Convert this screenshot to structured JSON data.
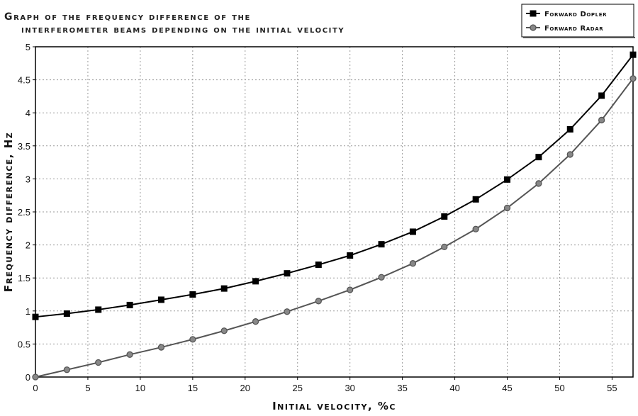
{
  "chart_data": {
    "type": "line",
    "title_lines": [
      "Graph of the frequency difference of the",
      "interferometer beams depending on the initial velocity"
    ],
    "xlabel": "Initial velocity, %c",
    "ylabel": "Frequency difference, Hz",
    "xlim": [
      0,
      57
    ],
    "ylim": [
      0,
      5
    ],
    "xticks": [
      0,
      5,
      10,
      15,
      20,
      25,
      30,
      35,
      40,
      45,
      50,
      55
    ],
    "yticks": [
      0,
      0.5,
      1,
      1.5,
      2,
      2.5,
      3,
      3.5,
      4,
      4.5,
      5
    ],
    "grid": true,
    "legend_position": "top-right",
    "series": [
      {
        "name": "Forward Dopler",
        "color": "#000000",
        "marker": "square",
        "x": [
          0,
          3,
          6,
          9,
          12,
          15,
          18,
          21,
          24,
          27,
          30,
          33,
          36,
          39,
          42,
          45,
          48,
          51,
          54,
          57
        ],
        "y": [
          0.91,
          0.96,
          1.02,
          1.09,
          1.17,
          1.25,
          1.34,
          1.45,
          1.57,
          1.7,
          1.84,
          2.01,
          2.2,
          2.43,
          2.69,
          2.99,
          3.33,
          3.75,
          4.26,
          4.88
        ]
      },
      {
        "name": "Forward Radar",
        "color": "#555555",
        "marker": "circle",
        "x": [
          0,
          3,
          6,
          9,
          12,
          15,
          18,
          21,
          24,
          27,
          30,
          33,
          36,
          39,
          42,
          45,
          48,
          51,
          54,
          57
        ],
        "y": [
          0.0,
          0.11,
          0.22,
          0.34,
          0.45,
          0.57,
          0.7,
          0.84,
          0.99,
          1.15,
          1.32,
          1.51,
          1.72,
          1.97,
          2.24,
          2.56,
          2.93,
          3.37,
          3.89,
          4.52
        ]
      }
    ]
  }
}
